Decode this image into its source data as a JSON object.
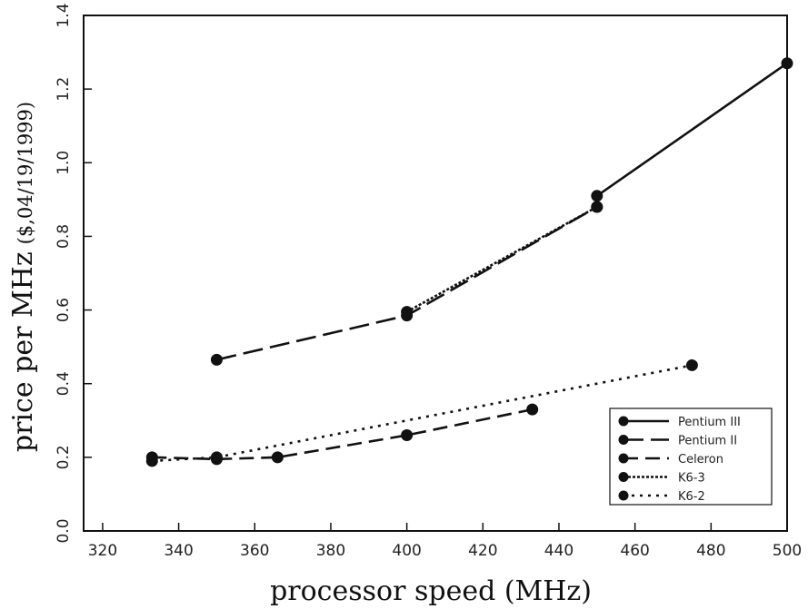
{
  "chart_data": {
    "type": "line",
    "xlabel": "processor speed (MHz)",
    "ylabel": "price per MHz",
    "ylabel_sub": "($,04/19/1999)",
    "xlim": [
      315,
      500
    ],
    "ylim": [
      0.0,
      1.4
    ],
    "xticks": [
      320,
      340,
      360,
      380,
      400,
      420,
      440,
      460,
      480,
      500
    ],
    "yticks": [
      "0.0",
      "0.2",
      "0.4",
      "0.6",
      "0.8",
      "1.0",
      "1.2",
      "1.4"
    ],
    "grid": false,
    "legend_position": "bottom-right",
    "series": [
      {
        "name": "Pentium III",
        "style": "solid",
        "x": [
          450,
          500
        ],
        "y": [
          0.91,
          1.27
        ]
      },
      {
        "name": "Pentium II",
        "style": "long-dash",
        "x": [
          350,
          400,
          450
        ],
        "y": [
          0.465,
          0.585,
          0.88
        ]
      },
      {
        "name": "Celeron",
        "style": "dash",
        "x": [
          333,
          350,
          366,
          400,
          433
        ],
        "y": [
          0.2,
          0.195,
          0.2,
          0.26,
          0.33
        ]
      },
      {
        "name": "K6-3",
        "style": "dense-dot",
        "x": [
          400,
          450
        ],
        "y": [
          0.595,
          0.88
        ]
      },
      {
        "name": "K6-2",
        "style": "dot",
        "x": [
          333,
          350,
          475
        ],
        "y": [
          0.19,
          0.2,
          0.45
        ]
      }
    ]
  }
}
